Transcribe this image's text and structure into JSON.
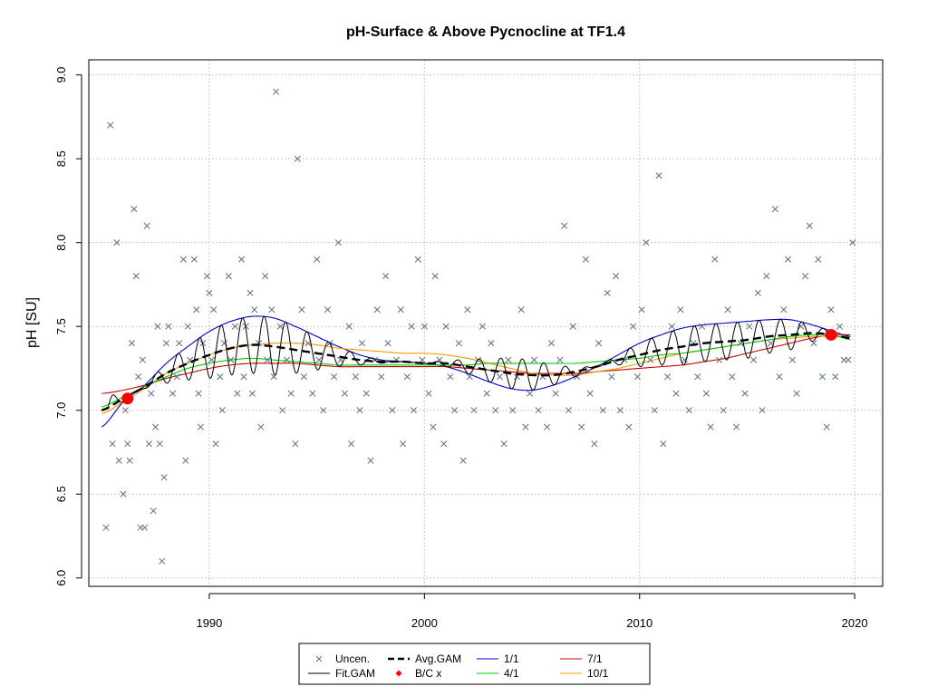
{
  "chart_data": {
    "type": "scatter",
    "title": "pH-Surface & Above Pycnocline at TF1.4",
    "xlabel": "",
    "ylabel": "pH [SU]",
    "xlim": [
      1985,
      2020
    ],
    "ylim": [
      6.0,
      9.0
    ],
    "x_ticks": [
      {
        "label": "1990",
        "value": 1990
      },
      {
        "label": "2000",
        "value": 2000
      },
      {
        "label": "2010",
        "value": 2010
      },
      {
        "label": "2020",
        "value": 2020
      }
    ],
    "y_ticks": [
      {
        "label": "6.0",
        "value": 6.0
      },
      {
        "label": "6.5",
        "value": 6.5
      },
      {
        "label": "7.0",
        "value": 7.0
      },
      {
        "label": "7.5",
        "value": 7.5
      },
      {
        "label": "8.0",
        "value": 8.0
      },
      {
        "label": "8.5",
        "value": 8.5
      },
      {
        "label": "9.0",
        "value": 9.0
      }
    ],
    "grid": true,
    "legend_position": "bottom-center",
    "legend": [
      {
        "label": "Uncen.",
        "kind": "cross",
        "color": "#5f6f87"
      },
      {
        "label": "Avg.GAM",
        "kind": "dashed",
        "color": "#000000"
      },
      {
        "label": "1/1",
        "kind": "line",
        "color": "#0000cc"
      },
      {
        "label": "7/1",
        "kind": "line",
        "color": "#cc0000"
      },
      {
        "label": "Fit.GAM",
        "kind": "line",
        "color": "#000000"
      },
      {
        "label": "B/C x",
        "kind": "diamond",
        "color": "#ff0000"
      },
      {
        "label": "4/1",
        "kind": "line",
        "color": "#00cc00"
      },
      {
        "label": "10/1",
        "kind": "line",
        "color": "#ff9900"
      }
    ],
    "scatter": {
      "name": "Uncen.",
      "color": "#5f6f87",
      "points": [
        [
          1985.2,
          6.3
        ],
        [
          1985.4,
          8.7
        ],
        [
          1985.5,
          6.8
        ],
        [
          1985.7,
          8.0
        ],
        [
          1985.8,
          6.7
        ],
        [
          1986.0,
          6.5
        ],
        [
          1986.1,
          7.0
        ],
        [
          1986.2,
          6.8
        ],
        [
          1986.3,
          6.7
        ],
        [
          1986.4,
          7.4
        ],
        [
          1986.5,
          8.2
        ],
        [
          1986.6,
          7.8
        ],
        [
          1986.7,
          7.2
        ],
        [
          1986.8,
          6.3
        ],
        [
          1986.9,
          7.3
        ],
        [
          1987.0,
          6.3
        ],
        [
          1987.1,
          8.1
        ],
        [
          1987.2,
          6.8
        ],
        [
          1987.3,
          7.1
        ],
        [
          1987.4,
          6.4
        ],
        [
          1987.5,
          6.9
        ],
        [
          1987.6,
          7.5
        ],
        [
          1987.7,
          6.8
        ],
        [
          1987.8,
          6.1
        ],
        [
          1987.9,
          6.6
        ],
        [
          1988.0,
          7.4
        ],
        [
          1988.1,
          7.5
        ],
        [
          1988.3,
          7.1
        ],
        [
          1988.5,
          7.2
        ],
        [
          1988.6,
          7.4
        ],
        [
          1988.8,
          7.9
        ],
        [
          1988.9,
          6.7
        ],
        [
          1989.0,
          7.5
        ],
        [
          1989.1,
          7.3
        ],
        [
          1989.3,
          7.9
        ],
        [
          1989.4,
          7.6
        ],
        [
          1989.5,
          7.1
        ],
        [
          1989.6,
          6.9
        ],
        [
          1989.7,
          7.4
        ],
        [
          1989.9,
          7.8
        ],
        [
          1990.0,
          7.7
        ],
        [
          1990.1,
          7.3
        ],
        [
          1990.2,
          7.6
        ],
        [
          1990.3,
          6.8
        ],
        [
          1990.5,
          7.2
        ],
        [
          1990.6,
          7.0
        ],
        [
          1990.7,
          7.4
        ],
        [
          1990.9,
          7.8
        ],
        [
          1991.0,
          7.3
        ],
        [
          1991.2,
          7.5
        ],
        [
          1991.3,
          7.1
        ],
        [
          1991.5,
          7.9
        ],
        [
          1991.6,
          7.2
        ],
        [
          1991.7,
          7.5
        ],
        [
          1991.9,
          7.7
        ],
        [
          1992.0,
          7.1
        ],
        [
          1992.1,
          7.6
        ],
        [
          1992.3,
          7.4
        ],
        [
          1992.4,
          6.9
        ],
        [
          1992.6,
          7.8
        ],
        [
          1992.7,
          7.3
        ],
        [
          1992.9,
          7.6
        ],
        [
          1993.0,
          7.2
        ],
        [
          1993.1,
          8.9
        ],
        [
          1993.3,
          7.5
        ],
        [
          1993.4,
          7.0
        ],
        [
          1993.6,
          7.3
        ],
        [
          1993.8,
          7.1
        ],
        [
          1994.0,
          6.8
        ],
        [
          1994.1,
          8.5
        ],
        [
          1994.3,
          7.6
        ],
        [
          1994.4,
          7.2
        ],
        [
          1994.6,
          7.4
        ],
        [
          1994.8,
          7.1
        ],
        [
          1995.0,
          7.9
        ],
        [
          1995.1,
          7.3
        ],
        [
          1995.3,
          7.0
        ],
        [
          1995.5,
          7.6
        ],
        [
          1995.6,
          7.4
        ],
        [
          1995.8,
          7.2
        ],
        [
          1996.0,
          8.0
        ],
        [
          1996.1,
          7.3
        ],
        [
          1996.3,
          7.1
        ],
        [
          1996.5,
          7.5
        ],
        [
          1996.6,
          6.8
        ],
        [
          1996.8,
          7.2
        ],
        [
          1997.0,
          7.0
        ],
        [
          1997.1,
          7.4
        ],
        [
          1997.3,
          7.1
        ],
        [
          1997.5,
          6.7
        ],
        [
          1997.7,
          7.3
        ],
        [
          1997.8,
          7.6
        ],
        [
          1998.0,
          7.2
        ],
        [
          1998.2,
          7.8
        ],
        [
          1998.3,
          7.4
        ],
        [
          1998.5,
          7.0
        ],
        [
          1998.7,
          7.3
        ],
        [
          1998.9,
          7.6
        ],
        [
          1999.0,
          6.8
        ],
        [
          1999.2,
          7.2
        ],
        [
          1999.4,
          7.5
        ],
        [
          1999.5,
          7.0
        ],
        [
          1999.7,
          7.9
        ],
        [
          1999.9,
          7.3
        ],
        [
          2000.0,
          7.5
        ],
        [
          2000.2,
          7.1
        ],
        [
          2000.4,
          6.9
        ],
        [
          2000.5,
          7.8
        ],
        [
          2000.7,
          7.3
        ],
        [
          2000.9,
          6.8
        ],
        [
          2001.0,
          7.5
        ],
        [
          2001.2,
          7.2
        ],
        [
          2001.4,
          7.0
        ],
        [
          2001.6,
          7.4
        ],
        [
          2001.8,
          6.7
        ],
        [
          2002.0,
          7.6
        ],
        [
          2002.1,
          7.2
        ],
        [
          2002.3,
          7.0
        ],
        [
          2002.5,
          7.3
        ],
        [
          2002.7,
          7.5
        ],
        [
          2002.9,
          7.1
        ],
        [
          2003.1,
          7.4
        ],
        [
          2003.3,
          7.0
        ],
        [
          2003.5,
          7.2
        ],
        [
          2003.7,
          6.8
        ],
        [
          2003.9,
          7.3
        ],
        [
          2004.1,
          7.0
        ],
        [
          2004.3,
          7.2
        ],
        [
          2004.5,
          7.6
        ],
        [
          2004.7,
          6.9
        ],
        [
          2004.9,
          7.1
        ],
        [
          2005.1,
          7.3
        ],
        [
          2005.3,
          7.0
        ],
        [
          2005.5,
          7.2
        ],
        [
          2005.7,
          6.9
        ],
        [
          2005.9,
          7.4
        ],
        [
          2006.1,
          7.1
        ],
        [
          2006.3,
          7.3
        ],
        [
          2006.5,
          8.1
        ],
        [
          2006.7,
          7.0
        ],
        [
          2006.9,
          7.5
        ],
        [
          2007.1,
          7.2
        ],
        [
          2007.3,
          6.9
        ],
        [
          2007.5,
          7.9
        ],
        [
          2007.7,
          7.1
        ],
        [
          2007.9,
          6.8
        ],
        [
          2008.1,
          7.4
        ],
        [
          2008.3,
          7.0
        ],
        [
          2008.5,
          7.7
        ],
        [
          2008.7,
          7.2
        ],
        [
          2008.9,
          7.8
        ],
        [
          2009.1,
          7.0
        ],
        [
          2009.3,
          7.3
        ],
        [
          2009.5,
          6.9
        ],
        [
          2009.7,
          7.5
        ],
        [
          2009.9,
          7.2
        ],
        [
          2010.1,
          7.6
        ],
        [
          2010.3,
          8.0
        ],
        [
          2010.5,
          7.3
        ],
        [
          2010.7,
          7.0
        ],
        [
          2010.9,
          8.4
        ],
        [
          2011.1,
          6.8
        ],
        [
          2011.3,
          7.2
        ],
        [
          2011.5,
          7.5
        ],
        [
          2011.7,
          7.1
        ],
        [
          2011.9,
          7.6
        ],
        [
          2012.1,
          7.3
        ],
        [
          2012.3,
          7.0
        ],
        [
          2012.5,
          7.4
        ],
        [
          2012.7,
          7.2
        ],
        [
          2012.9,
          7.5
        ],
        [
          2013.1,
          7.1
        ],
        [
          2013.3,
          6.9
        ],
        [
          2013.5,
          7.9
        ],
        [
          2013.7,
          7.3
        ],
        [
          2013.9,
          7.0
        ],
        [
          2014.1,
          7.6
        ],
        [
          2014.3,
          7.2
        ],
        [
          2014.5,
          6.9
        ],
        [
          2014.7,
          7.4
        ],
        [
          2014.9,
          7.1
        ],
        [
          2015.1,
          7.5
        ],
        [
          2015.3,
          7.3
        ],
        [
          2015.5,
          7.7
        ],
        [
          2015.7,
          7.0
        ],
        [
          2015.9,
          7.8
        ],
        [
          2016.1,
          7.4
        ],
        [
          2016.3,
          8.2
        ],
        [
          2016.5,
          7.2
        ],
        [
          2016.7,
          7.6
        ],
        [
          2016.9,
          7.9
        ],
        [
          2017.1,
          7.3
        ],
        [
          2017.3,
          7.1
        ],
        [
          2017.5,
          7.5
        ],
        [
          2017.7,
          7.8
        ],
        [
          2017.9,
          8.1
        ],
        [
          2018.1,
          7.4
        ],
        [
          2018.3,
          7.9
        ],
        [
          2018.5,
          7.2
        ],
        [
          2018.7,
          6.9
        ],
        [
          2018.9,
          7.6
        ],
        [
          2019.1,
          7.2
        ],
        [
          2019.3,
          7.5
        ],
        [
          2019.5,
          7.3
        ],
        [
          2019.7,
          7.3
        ],
        [
          2019.9,
          8.0
        ]
      ]
    },
    "series": [
      {
        "name": "1/1",
        "color": "#0000cc",
        "x": [
          1985.0,
          1986.0,
          1987.0,
          1988.0,
          1989.0,
          1990.0,
          1991.0,
          1992.0,
          1993.0,
          1994.0,
          1995.0,
          1996.0,
          1997.0,
          1998.0,
          1999.0,
          2000.0,
          2001.0,
          2002.0,
          2003.0,
          2004.0,
          2005.0,
          2006.0,
          2007.0,
          2008.0,
          2009.0,
          2010.0,
          2011.0,
          2012.0,
          2013.0,
          2014.0,
          2015.0,
          2016.0,
          2017.0,
          2018.0,
          2019.0,
          2019.8
        ],
        "values": [
          6.9,
          7.05,
          7.15,
          7.28,
          7.38,
          7.47,
          7.53,
          7.56,
          7.55,
          7.5,
          7.44,
          7.38,
          7.33,
          7.3,
          7.29,
          7.28,
          7.26,
          7.22,
          7.17,
          7.13,
          7.12,
          7.15,
          7.2,
          7.26,
          7.33,
          7.4,
          7.45,
          7.49,
          7.51,
          7.52,
          7.53,
          7.54,
          7.54,
          7.51,
          7.47,
          7.44
        ]
      },
      {
        "name": "4/1",
        "color": "#00cc00",
        "x": [
          1985.0,
          1986.0,
          1987.0,
          1988.0,
          1989.0,
          1990.0,
          1991.0,
          1992.0,
          1993.0,
          1994.0,
          1995.0,
          1996.0,
          1997.0,
          1998.0,
          1999.0,
          2000.0,
          2001.0,
          2002.0,
          2003.0,
          2004.0,
          2005.0,
          2006.0,
          2007.0,
          2008.0,
          2009.0,
          2010.0,
          2011.0,
          2012.0,
          2013.0,
          2014.0,
          2015.0,
          2016.0,
          2017.0,
          2018.0,
          2019.0,
          2019.8
        ],
        "values": [
          7.02,
          7.08,
          7.14,
          7.2,
          7.25,
          7.28,
          7.3,
          7.31,
          7.3,
          7.29,
          7.28,
          7.27,
          7.27,
          7.27,
          7.27,
          7.27,
          7.27,
          7.27,
          7.28,
          7.28,
          7.28,
          7.28,
          7.28,
          7.29,
          7.3,
          7.31,
          7.33,
          7.34,
          7.36,
          7.38,
          7.4,
          7.42,
          7.44,
          7.45,
          7.45,
          7.42
        ]
      },
      {
        "name": "7/1",
        "color": "#cc0000",
        "x": [
          1985.0,
          1986.0,
          1987.0,
          1988.0,
          1989.0,
          1990.0,
          1991.0,
          1992.0,
          1993.0,
          1994.0,
          1995.0,
          1996.0,
          1997.0,
          1998.0,
          1999.0,
          2000.0,
          2001.0,
          2002.0,
          2003.0,
          2004.0,
          2005.0,
          2006.0,
          2007.0,
          2008.0,
          2009.0,
          2010.0,
          2011.0,
          2012.0,
          2013.0,
          2014.0,
          2015.0,
          2016.0,
          2017.0,
          2018.0,
          2019.0,
          2019.8
        ],
        "values": [
          7.1,
          7.12,
          7.15,
          7.19,
          7.22,
          7.25,
          7.27,
          7.28,
          7.28,
          7.28,
          7.27,
          7.26,
          7.26,
          7.26,
          7.26,
          7.26,
          7.26,
          7.25,
          7.24,
          7.23,
          7.22,
          7.22,
          7.22,
          7.23,
          7.24,
          7.25,
          7.26,
          7.27,
          7.29,
          7.31,
          7.34,
          7.37,
          7.4,
          7.43,
          7.45,
          7.45
        ]
      },
      {
        "name": "10/1",
        "color": "#ff9900",
        "x": [
          1985.0,
          1986.0,
          1987.0,
          1988.0,
          1989.0,
          1990.0,
          1991.0,
          1992.0,
          1993.0,
          1994.0,
          1995.0,
          1996.0,
          1997.0,
          1998.0,
          1999.0,
          2000.0,
          2001.0,
          2002.0,
          2003.0,
          2004.0,
          2005.0,
          2006.0,
          2007.0,
          2008.0,
          2009.0,
          2010.0,
          2011.0,
          2012.0,
          2013.0,
          2014.0,
          2015.0,
          2016.0,
          2017.0,
          2018.0,
          2019.0,
          2019.8
        ],
        "values": [
          6.98,
          7.05,
          7.13,
          7.22,
          7.28,
          7.33,
          7.37,
          7.39,
          7.4,
          7.4,
          7.39,
          7.37,
          7.36,
          7.35,
          7.34,
          7.34,
          7.33,
          7.31,
          7.28,
          7.25,
          7.22,
          7.21,
          7.21,
          7.23,
          7.25,
          7.28,
          7.31,
          7.34,
          7.36,
          7.38,
          7.4,
          7.42,
          7.43,
          7.44,
          7.44,
          7.43
        ]
      },
      {
        "name": "Avg.GAM",
        "color": "#000000",
        "dashed": true,
        "x": [
          1985.0,
          1986.0,
          1987.0,
          1988.0,
          1989.0,
          1990.0,
          1991.0,
          1992.0,
          1993.0,
          1994.0,
          1995.0,
          1996.0,
          1997.0,
          1998.0,
          1999.0,
          2000.0,
          2001.0,
          2002.0,
          2003.0,
          2004.0,
          2005.0,
          2006.0,
          2007.0,
          2008.0,
          2009.0,
          2010.0,
          2011.0,
          2012.0,
          2013.0,
          2014.0,
          2015.0,
          2016.0,
          2017.0,
          2018.0,
          2019.0,
          2019.8
        ],
        "values": [
          7.0,
          7.07,
          7.14,
          7.22,
          7.28,
          7.33,
          7.37,
          7.39,
          7.38,
          7.36,
          7.34,
          7.32,
          7.3,
          7.29,
          7.29,
          7.28,
          7.28,
          7.26,
          7.24,
          7.22,
          7.21,
          7.21,
          7.23,
          7.26,
          7.3,
          7.33,
          7.36,
          7.38,
          7.4,
          7.41,
          7.42,
          7.44,
          7.45,
          7.46,
          7.45,
          7.43
        ]
      }
    ],
    "fit_gam": {
      "name": "Fit.GAM",
      "color": "#000000",
      "x_start": 1985.3,
      "x_end": 2019.0,
      "cycles_per_year": 1
    },
    "bc_points": {
      "name": "B/C x",
      "color": "#ff0000",
      "points": [
        [
          1986.2,
          7.07
        ],
        [
          2018.9,
          7.45
        ]
      ]
    }
  }
}
